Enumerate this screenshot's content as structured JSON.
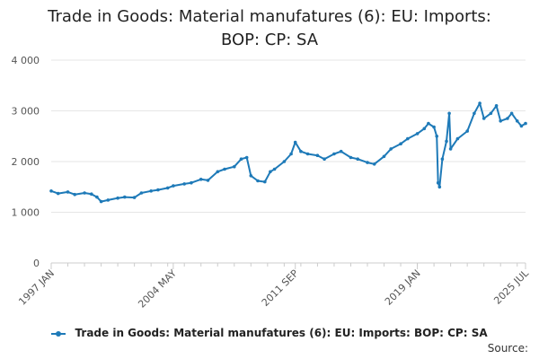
{
  "title_line1": "Trade in Goods: Material manufatures (6): EU: Imports:",
  "title_line2": "BOP: CP: SA",
  "source_label": "Source:",
  "colors": {
    "series": "#1e7ab8",
    "grid": "#e6e6e6",
    "axis": "#cccccc"
  },
  "chart_data": {
    "type": "line",
    "title": "Trade in Goods: Material manufatures (6): EU: Imports: BOP: CP: SA",
    "xlabel": "",
    "ylabel": "",
    "ylim": [
      0,
      4000
    ],
    "y_ticks": [
      0,
      1000,
      2000,
      3000,
      4000
    ],
    "y_tick_labels": [
      "0",
      "1 000",
      "2 000",
      "3 000",
      "4 000"
    ],
    "x_range": [
      "1997-01",
      "2025-07"
    ],
    "x_tick_labels": [
      {
        "label": "1997 JAN",
        "date": "1997-01"
      },
      {
        "label": "2004 MAY",
        "date": "2004-05"
      },
      {
        "label": "2011 SEP",
        "date": "2011-09"
      },
      {
        "label": "2019 JAN",
        "date": "2019-01"
      },
      {
        "label": "2025 JUL",
        "date": "2025-07"
      }
    ],
    "grid": true,
    "legend_position": "bottom",
    "series": [
      {
        "name": "Trade in Goods: Material manufatures (6): EU: Imports: BOP: CP: SA",
        "points": [
          [
            "1997-01",
            1420
          ],
          [
            "1997-06",
            1370
          ],
          [
            "1998-01",
            1400
          ],
          [
            "1998-06",
            1350
          ],
          [
            "1999-01",
            1380
          ],
          [
            "1999-06",
            1360
          ],
          [
            "1999-10",
            1300
          ],
          [
            "2000-01",
            1210
          ],
          [
            "2000-06",
            1240
          ],
          [
            "2001-01",
            1280
          ],
          [
            "2001-06",
            1300
          ],
          [
            "2002-01",
            1290
          ],
          [
            "2002-06",
            1380
          ],
          [
            "2003-01",
            1420
          ],
          [
            "2003-06",
            1440
          ],
          [
            "2004-01",
            1480
          ],
          [
            "2004-05",
            1520
          ],
          [
            "2005-01",
            1560
          ],
          [
            "2005-06",
            1580
          ],
          [
            "2006-01",
            1650
          ],
          [
            "2006-06",
            1630
          ],
          [
            "2007-01",
            1800
          ],
          [
            "2007-06",
            1850
          ],
          [
            "2008-01",
            1900
          ],
          [
            "2008-06",
            2050
          ],
          [
            "2008-10",
            2080
          ],
          [
            "2009-01",
            1720
          ],
          [
            "2009-06",
            1620
          ],
          [
            "2009-11",
            1600
          ],
          [
            "2010-03",
            1800
          ],
          [
            "2010-06",
            1850
          ],
          [
            "2011-01",
            2000
          ],
          [
            "2011-06",
            2150
          ],
          [
            "2011-09",
            2380
          ],
          [
            "2012-01",
            2200
          ],
          [
            "2012-06",
            2150
          ],
          [
            "2013-01",
            2120
          ],
          [
            "2013-06",
            2050
          ],
          [
            "2014-01",
            2150
          ],
          [
            "2014-06",
            2200
          ],
          [
            "2015-01",
            2080
          ],
          [
            "2015-06",
            2050
          ],
          [
            "2016-01",
            1980
          ],
          [
            "2016-06",
            1950
          ],
          [
            "2017-01",
            2100
          ],
          [
            "2017-06",
            2250
          ],
          [
            "2018-01",
            2350
          ],
          [
            "2018-06",
            2450
          ],
          [
            "2019-01",
            2550
          ],
          [
            "2019-06",
            2650
          ],
          [
            "2019-09",
            2750
          ],
          [
            "2020-01",
            2680
          ],
          [
            "2020-03",
            2500
          ],
          [
            "2020-04",
            1580
          ],
          [
            "2020-05",
            1500
          ],
          [
            "2020-07",
            2050
          ],
          [
            "2020-10",
            2400
          ],
          [
            "2020-12",
            2950
          ],
          [
            "2021-01",
            2250
          ],
          [
            "2021-06",
            2450
          ],
          [
            "2022-01",
            2600
          ],
          [
            "2022-06",
            2950
          ],
          [
            "2022-10",
            3150
          ],
          [
            "2023-01",
            2850
          ],
          [
            "2023-06",
            2950
          ],
          [
            "2023-10",
            3100
          ],
          [
            "2024-01",
            2800
          ],
          [
            "2024-06",
            2850
          ],
          [
            "2024-09",
            2950
          ],
          [
            "2025-01",
            2800
          ],
          [
            "2025-04",
            2700
          ],
          [
            "2025-07",
            2750
          ]
        ]
      }
    ]
  }
}
